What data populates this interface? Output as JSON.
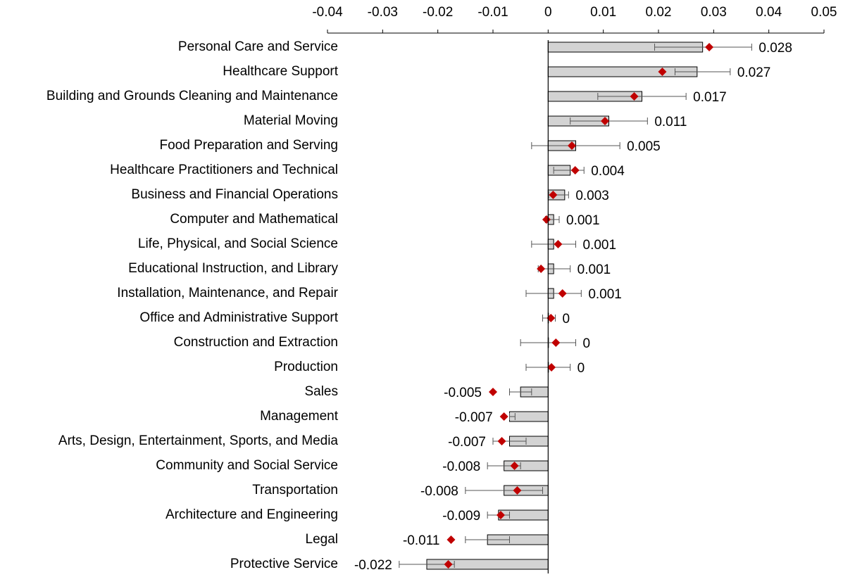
{
  "chart_data": {
    "type": "bar",
    "categories": [
      "Personal Care and Service",
      "Healthcare Support",
      "Building and Grounds Cleaning and Maintenance",
      "Material Moving",
      "Food Preparation and Serving",
      "Healthcare Practitioners and Technical",
      "Business and Financial Operations",
      "Computer and Mathematical",
      "Life, Physical, and Social Science",
      "Educational Instruction, and Library",
      "Installation, Maintenance, and Repair",
      "Office and Administrative Support",
      "Construction and Extraction",
      "Production",
      "Sales",
      "Management",
      "Arts, Design, Entertainment, Sports, and Media",
      "Community and Social Service",
      "Transportation",
      "Architecture and Engineering",
      "Legal",
      "Protective Service"
    ],
    "values": [
      0.028,
      0.027,
      0.017,
      0.011,
      0.005,
      0.004,
      0.003,
      0.001,
      0.001,
      0.001,
      0.001,
      0,
      0,
      0,
      -0.005,
      -0.007,
      -0.007,
      -0.008,
      -0.008,
      -0.009,
      -0.011,
      -0.022
    ],
    "error_low": [
      0.0193,
      0.023,
      0.009,
      0.004,
      -0.003,
      0.001,
      0.0001,
      -0.0005,
      -0.003,
      -0.0018,
      -0.004,
      -0.001,
      -0.005,
      -0.004,
      -0.007,
      -0.007,
      -0.01,
      -0.011,
      -0.015,
      -0.011,
      -0.015,
      -0.027
    ],
    "error_high": [
      0.0369,
      0.033,
      0.025,
      0.018,
      0.013,
      0.0065,
      0.0037,
      0.002,
      0.005,
      0.004,
      0.006,
      0.0013,
      0.005,
      0.004,
      -0.003,
      -0.006,
      -0.004,
      -0.005,
      -0.001,
      -0.007,
      -0.007,
      -0.017
    ],
    "markers": [
      0.0292,
      0.0207,
      0.0156,
      0.0103,
      0.0043,
      0.0049,
      0.0009,
      -0.0003,
      0.0018,
      -0.0013,
      0.0026,
      0.0005,
      0.0014,
      0.0006,
      -0.01,
      -0.008,
      -0.0084,
      -0.0061,
      -0.0056,
      -0.0086,
      -0.0176,
      -0.0181
    ],
    "color": "#d3d3d3",
    "marker_color": "#c00000",
    "xlim": [
      -0.04,
      0.05
    ],
    "xticks": [
      -0.04,
      -0.03,
      -0.02,
      -0.01,
      0,
      0.01,
      0.02,
      0.03,
      0.04,
      0.05
    ]
  }
}
